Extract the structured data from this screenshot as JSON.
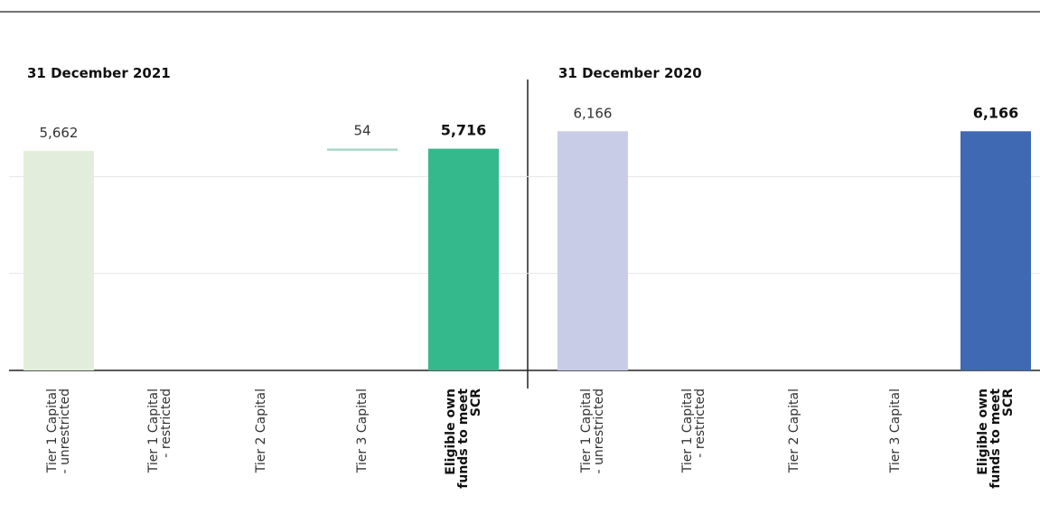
{
  "chart_data": [
    {
      "type": "waterfall",
      "title": "31 December 2021",
      "categories": [
        "Tier 1 Capital\n- unrestricted",
        "Tier 1 Capital\n- restricted",
        "Tier 2 Capital",
        "Tier 3 Capital",
        "Eligible own\nfunds to meet\nSCR"
      ],
      "values": [
        5662,
        null,
        null,
        54,
        5716
      ],
      "value_labels": [
        "5,662",
        null,
        null,
        "54",
        "5,716"
      ],
      "colors": [
        "#e2eedb",
        null,
        null,
        "#a8d8c8",
        "#33b98b"
      ],
      "ylim": [
        0,
        7500
      ],
      "yticks": [
        0,
        2500,
        5000
      ],
      "grid": true
    },
    {
      "type": "waterfall",
      "title": "31 December 2020",
      "categories": [
        "Tier 1 Capital\n- unrestricted",
        "Tier 1 Capital\n- restricted",
        "Tier 2 Capital",
        "Tier 3 Capital",
        "Eligible own\nfunds to meet\nSCR"
      ],
      "values": [
        6166,
        null,
        null,
        null,
        6166
      ],
      "value_labels": [
        "6,166",
        null,
        null,
        null,
        "6,166"
      ],
      "colors": [
        "#c8cce6",
        null,
        null,
        null,
        "#3f69b2"
      ],
      "ylim": [
        0,
        7500
      ],
      "yticks": [
        0,
        2500,
        5000
      ],
      "grid": true
    }
  ]
}
